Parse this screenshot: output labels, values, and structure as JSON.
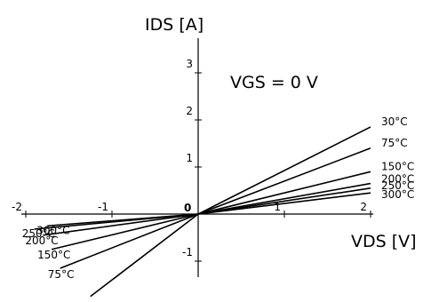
{
  "chart_data": {
    "type": "line",
    "ylabel": "IDS [A]",
    "xlabel": "VDS [V]",
    "annotation": "VGS = 0 V",
    "xlim": [
      -2,
      2
    ],
    "ylim": [
      -1.8,
      3.4
    ],
    "x_ticks": [
      {
        "value": -2,
        "label": "-2"
      },
      {
        "value": -1,
        "label": "-1"
      },
      {
        "value": 1,
        "label": "1"
      },
      {
        "value": 2,
        "label": "2"
      }
    ],
    "y_ticks": [
      {
        "value": 3,
        "label": "3"
      },
      {
        "value": 2,
        "label": "2"
      },
      {
        "value": 1,
        "label": "1"
      },
      {
        "value": -1,
        "label": "-1"
      }
    ],
    "origin_label": "0",
    "grid": false,
    "series": [
      {
        "name": "30°C",
        "x": [
          -1.25,
          0,
          2
        ],
        "y": [
          -1.75,
          0,
          1.85
        ]
      },
      {
        "name": "75°C",
        "x": [
          -1.6,
          0,
          2
        ],
        "y": [
          -1.15,
          0,
          1.4
        ]
      },
      {
        "name": "150°C",
        "x": [
          -1.7,
          0,
          2
        ],
        "y": [
          -0.75,
          0,
          0.9
        ]
      },
      {
        "name": "200°C",
        "x": [
          -1.8,
          0,
          2
        ],
        "y": [
          -0.45,
          0,
          0.65
        ]
      },
      {
        "name": "250°C",
        "x": [
          -1.9,
          0,
          2
        ],
        "y": [
          -0.32,
          0,
          0.55
        ]
      },
      {
        "name": "300°C",
        "x": [
          -1.75,
          0,
          2
        ],
        "y": [
          -0.25,
          0,
          0.45
        ]
      }
    ]
  }
}
